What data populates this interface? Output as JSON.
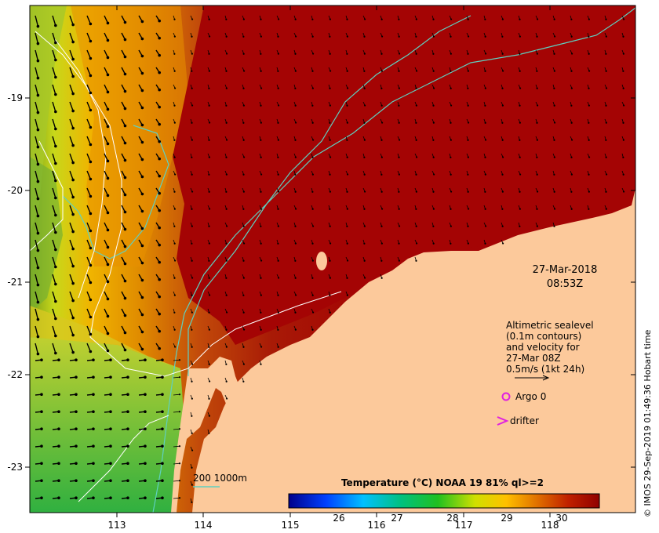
{
  "map": {
    "date": "27-Mar-2018",
    "time": "08:53Z",
    "credit": "© IMOS 29-Sep-2019 01:49:36 Hobart time",
    "x_ticks": [
      "113",
      "114",
      "115",
      "116",
      "117",
      "118"
    ],
    "y_ticks": [
      "-19",
      "-20",
      "-21",
      "-22",
      "-23"
    ],
    "legend": {
      "line1": "Altimetric sealevel",
      "line2": "(0.1m contours)",
      "line3": "and velocity for",
      "line4": "27-Mar 08Z",
      "line5": "0.5m/s (1kt 24h)",
      "argo": "Argo 0",
      "drifter": "drifter"
    },
    "bathy_label": "200  1000m",
    "colorbar": {
      "title": "Temperature (°C) NOAA 19 81% ql>=2",
      "ticks": [
        "26",
        "27",
        "28",
        "29",
        "30"
      ]
    }
  },
  "colors": {
    "land": "#fcc99b",
    "hot": "#a40404",
    "bathy": "#5fd0c0",
    "sealevel_contour": "#ffffff",
    "argo": "#e020e0",
    "drifter": "#e020e0"
  }
}
